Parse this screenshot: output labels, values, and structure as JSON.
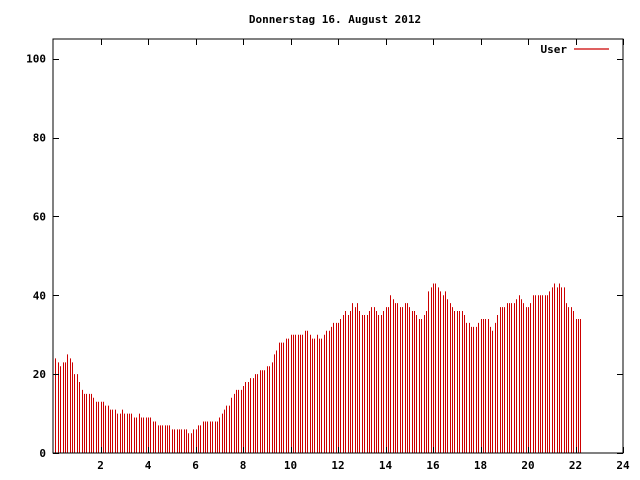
{
  "chart_data": {
    "type": "bar",
    "title": "Donnerstag 16. August 2012",
    "xlabel": "",
    "ylabel": "",
    "xlim": [
      0,
      24
    ],
    "ylim": [
      0,
      105
    ],
    "grid": false,
    "legend_position": "top-right",
    "x_ticks": [
      2,
      4,
      6,
      8,
      10,
      12,
      14,
      16,
      18,
      20,
      22,
      24
    ],
    "x_tick_labels": [
      "2",
      "4",
      "6",
      "8",
      "10",
      "12",
      "14",
      "16",
      "18",
      "20",
      "22",
      "24"
    ],
    "y_ticks": [
      0,
      20,
      40,
      60,
      80,
      100
    ],
    "y_tick_labels": [
      "0",
      "20",
      "40",
      "60",
      "80",
      "100"
    ],
    "series": [
      {
        "name": "User",
        "color": "#cc0000",
        "x_step_hours": 0.1,
        "values": [
          24,
          23,
          22,
          23,
          23,
          25,
          24,
          23,
          20,
          20,
          18,
          16,
          15,
          15,
          15,
          15,
          14,
          13,
          13,
          13,
          13,
          12,
          12,
          11,
          11,
          11,
          10,
          10,
          11,
          10,
          10,
          10,
          10,
          9,
          9,
          10,
          9,
          9,
          9,
          9,
          9,
          8,
          8,
          7,
          7,
          7,
          7,
          7,
          7,
          6,
          6,
          6,
          6,
          6,
          6,
          6,
          5,
          5,
          6,
          6,
          7,
          7,
          8,
          8,
          8,
          8,
          8,
          8,
          8,
          9,
          10,
          11,
          12,
          12,
          14,
          15,
          16,
          16,
          16,
          17,
          18,
          18,
          19,
          19,
          20,
          20,
          21,
          21,
          21,
          22,
          22,
          23,
          25,
          26,
          28,
          28,
          28,
          29,
          29,
          30,
          30,
          30,
          30,
          30,
          30,
          31,
          31,
          30,
          29,
          29,
          30,
          29,
          29,
          30,
          31,
          31,
          32,
          33,
          33,
          33,
          34,
          35,
          36,
          35,
          36,
          38,
          37,
          38,
          36,
          35,
          35,
          35,
          36,
          37,
          37,
          36,
          35,
          35,
          36,
          37,
          37,
          40,
          39,
          38,
          38,
          37,
          37,
          38,
          38,
          37,
          36,
          36,
          35,
          34,
          34,
          35,
          36,
          41,
          42,
          43,
          43,
          42,
          41,
          40,
          41,
          39,
          38,
          37,
          36,
          36,
          36,
          36,
          35,
          33,
          33,
          32,
          32,
          32,
          33,
          34,
          34,
          34,
          34,
          32,
          31,
          33,
          35,
          37,
          37,
          37,
          38,
          38,
          38,
          38,
          39,
          40,
          39,
          38,
          37,
          37,
          38,
          40,
          40,
          40,
          40,
          40,
          40,
          40,
          41,
          42,
          43,
          42,
          43,
          42,
          42,
          38,
          37,
          37,
          36,
          34,
          34,
          34
        ]
      }
    ]
  }
}
